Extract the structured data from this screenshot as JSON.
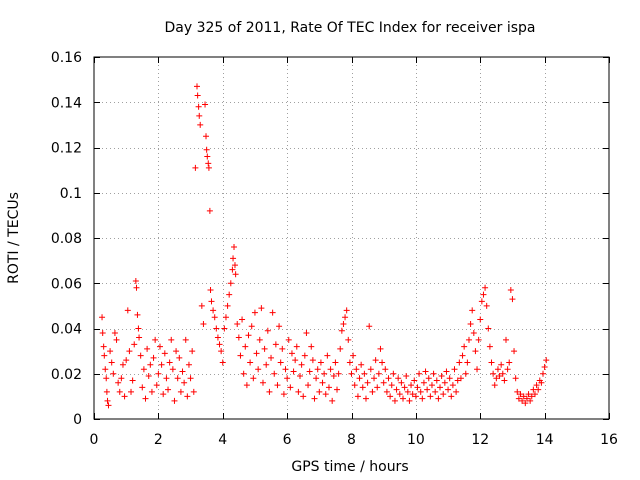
{
  "chart_data": {
    "type": "scatter",
    "title": "Day 325 of 2011, Rate Of TEC Index for receiver ispa",
    "xlabel": "GPS time / hours",
    "ylabel": "ROTI / TECUs",
    "xlim": [
      0,
      16
    ],
    "ylim": [
      0,
      0.16
    ],
    "x_ticks": [
      0,
      2,
      4,
      6,
      8,
      10,
      12,
      14,
      16
    ],
    "x_tick_labels": [
      "0",
      "2",
      "4",
      "6",
      "8",
      "10",
      "12",
      "14",
      "16"
    ],
    "y_ticks": [
      0,
      0.02,
      0.04,
      0.06,
      0.08,
      0.1,
      0.12,
      0.14,
      0.16
    ],
    "y_tick_labels": [
      "0",
      "0.02",
      "0.04",
      "0.06",
      "0.08",
      "0.1",
      "0.12",
      "0.14",
      "0.16"
    ],
    "grid": true,
    "marker": "+",
    "color": "#ff0000",
    "series": [
      {
        "name": "ROTI",
        "points": [
          [
            0.25,
            0.045
          ],
          [
            0.27,
            0.038
          ],
          [
            0.3,
            0.032
          ],
          [
            0.32,
            0.028
          ],
          [
            0.35,
            0.022
          ],
          [
            0.38,
            0.018
          ],
          [
            0.4,
            0.012
          ],
          [
            0.42,
            0.008
          ],
          [
            0.45,
            0.006
          ],
          [
            0.5,
            0.03
          ],
          [
            0.55,
            0.025
          ],
          [
            0.6,
            0.02
          ],
          [
            0.65,
            0.038
          ],
          [
            0.7,
            0.035
          ],
          [
            0.75,
            0.016
          ],
          [
            0.8,
            0.012
          ],
          [
            0.85,
            0.018
          ],
          [
            0.9,
            0.024
          ],
          [
            0.95,
            0.01
          ],
          [
            1.0,
            0.026
          ],
          [
            1.05,
            0.048
          ],
          [
            1.1,
            0.03
          ],
          [
            1.15,
            0.012
          ],
          [
            1.2,
            0.017
          ],
          [
            1.25,
            0.033
          ],
          [
            1.3,
            0.061
          ],
          [
            1.32,
            0.058
          ],
          [
            1.35,
            0.046
          ],
          [
            1.38,
            0.04
          ],
          [
            1.4,
            0.036
          ],
          [
            1.45,
            0.028
          ],
          [
            1.5,
            0.014
          ],
          [
            1.55,
            0.022
          ],
          [
            1.6,
            0.009
          ],
          [
            1.65,
            0.031
          ],
          [
            1.7,
            0.019
          ],
          [
            1.75,
            0.024
          ],
          [
            1.8,
            0.012
          ],
          [
            1.85,
            0.027
          ],
          [
            1.9,
            0.035
          ],
          [
            1.95,
            0.015
          ],
          [
            2.0,
            0.02
          ],
          [
            2.05,
            0.032
          ],
          [
            2.1,
            0.024
          ],
          [
            2.15,
            0.011
          ],
          [
            2.2,
            0.029
          ],
          [
            2.25,
            0.018
          ],
          [
            2.3,
            0.013
          ],
          [
            2.35,
            0.025
          ],
          [
            2.4,
            0.035
          ],
          [
            2.45,
            0.022
          ],
          [
            2.5,
            0.008
          ],
          [
            2.55,
            0.03
          ],
          [
            2.6,
            0.018
          ],
          [
            2.65,
            0.027
          ],
          [
            2.7,
            0.012
          ],
          [
            2.75,
            0.021
          ],
          [
            2.8,
            0.016
          ],
          [
            2.85,
            0.035
          ],
          [
            2.9,
            0.01
          ],
          [
            2.95,
            0.024
          ],
          [
            3.0,
            0.018
          ],
          [
            3.05,
            0.03
          ],
          [
            3.1,
            0.012
          ],
          [
            3.15,
            0.111
          ],
          [
            3.2,
            0.147
          ],
          [
            3.22,
            0.143
          ],
          [
            3.25,
            0.138
          ],
          [
            3.27,
            0.134
          ],
          [
            3.3,
            0.13
          ],
          [
            3.35,
            0.05
          ],
          [
            3.4,
            0.042
          ],
          [
            3.45,
            0.139
          ],
          [
            3.48,
            0.125
          ],
          [
            3.5,
            0.119
          ],
          [
            3.52,
            0.116
          ],
          [
            3.55,
            0.113
          ],
          [
            3.57,
            0.111
          ],
          [
            3.6,
            0.092
          ],
          [
            3.62,
            0.057
          ],
          [
            3.65,
            0.052
          ],
          [
            3.7,
            0.048
          ],
          [
            3.75,
            0.045
          ],
          [
            3.8,
            0.04
          ],
          [
            3.85,
            0.036
          ],
          [
            3.9,
            0.033
          ],
          [
            3.95,
            0.03
          ],
          [
            4.0,
            0.025
          ],
          [
            4.05,
            0.04
          ],
          [
            4.1,
            0.045
          ],
          [
            4.15,
            0.05
          ],
          [
            4.2,
            0.055
          ],
          [
            4.25,
            0.06
          ],
          [
            4.3,
            0.066
          ],
          [
            4.32,
            0.071
          ],
          [
            4.35,
            0.076
          ],
          [
            4.38,
            0.068
          ],
          [
            4.4,
            0.064
          ],
          [
            4.45,
            0.042
          ],
          [
            4.5,
            0.036
          ],
          [
            4.55,
            0.028
          ],
          [
            4.6,
            0.044
          ],
          [
            4.65,
            0.02
          ],
          [
            4.7,
            0.032
          ],
          [
            4.75,
            0.015
          ],
          [
            4.8,
            0.037
          ],
          [
            4.85,
            0.025
          ],
          [
            4.9,
            0.041
          ],
          [
            4.95,
            0.018
          ],
          [
            5.0,
            0.047
          ],
          [
            5.05,
            0.029
          ],
          [
            5.1,
            0.022
          ],
          [
            5.15,
            0.035
          ],
          [
            5.2,
            0.049
          ],
          [
            5.25,
            0.016
          ],
          [
            5.3,
            0.031
          ],
          [
            5.35,
            0.024
          ],
          [
            5.4,
            0.039
          ],
          [
            5.45,
            0.012
          ],
          [
            5.5,
            0.027
          ],
          [
            5.55,
            0.047
          ],
          [
            5.6,
            0.02
          ],
          [
            5.65,
            0.033
          ],
          [
            5.7,
            0.015
          ],
          [
            5.75,
            0.041
          ],
          [
            5.8,
            0.025
          ],
          [
            5.85,
            0.031
          ],
          [
            5.9,
            0.011
          ],
          [
            5.95,
            0.022
          ],
          [
            6.0,
            0.018
          ],
          [
            6.05,
            0.035
          ],
          [
            6.1,
            0.014
          ],
          [
            6.15,
            0.029
          ],
          [
            6.2,
            0.021
          ],
          [
            6.25,
            0.026
          ],
          [
            6.3,
            0.032
          ],
          [
            6.35,
            0.012
          ],
          [
            6.4,
            0.019
          ],
          [
            6.45,
            0.024
          ],
          [
            6.5,
            0.01
          ],
          [
            6.55,
            0.028
          ],
          [
            6.6,
            0.038
          ],
          [
            6.65,
            0.015
          ],
          [
            6.7,
            0.021
          ],
          [
            6.75,
            0.032
          ],
          [
            6.8,
            0.026
          ],
          [
            6.85,
            0.009
          ],
          [
            6.9,
            0.018
          ],
          [
            6.95,
            0.022
          ],
          [
            7.0,
            0.012
          ],
          [
            7.05,
            0.025
          ],
          [
            7.1,
            0.016
          ],
          [
            7.15,
            0.02
          ],
          [
            7.2,
            0.011
          ],
          [
            7.25,
            0.028
          ],
          [
            7.3,
            0.014
          ],
          [
            7.35,
            0.022
          ],
          [
            7.4,
            0.008
          ],
          [
            7.45,
            0.019
          ],
          [
            7.5,
            0.025
          ],
          [
            7.55,
            0.013
          ],
          [
            7.6,
            0.02
          ],
          [
            7.65,
            0.031
          ],
          [
            7.7,
            0.039
          ],
          [
            7.75,
            0.042
          ],
          [
            7.8,
            0.045
          ],
          [
            7.85,
            0.048
          ],
          [
            7.9,
            0.035
          ],
          [
            7.95,
            0.025
          ],
          [
            8.0,
            0.02
          ],
          [
            8.05,
            0.028
          ],
          [
            8.1,
            0.015
          ],
          [
            8.15,
            0.022
          ],
          [
            8.2,
            0.01
          ],
          [
            8.25,
            0.018
          ],
          [
            8.3,
            0.024
          ],
          [
            8.35,
            0.014
          ],
          [
            8.4,
            0.02
          ],
          [
            8.45,
            0.009
          ],
          [
            8.5,
            0.016
          ],
          [
            8.55,
            0.041
          ],
          [
            8.6,
            0.022
          ],
          [
            8.65,
            0.012
          ],
          [
            8.7,
            0.018
          ],
          [
            8.75,
            0.026
          ],
          [
            8.8,
            0.014
          ],
          [
            8.85,
            0.02
          ],
          [
            8.9,
            0.031
          ],
          [
            8.95,
            0.025
          ],
          [
            9.0,
            0.016
          ],
          [
            9.05,
            0.022
          ],
          [
            9.1,
            0.012
          ],
          [
            9.15,
            0.018
          ],
          [
            9.2,
            0.01
          ],
          [
            9.25,
            0.015
          ],
          [
            9.3,
            0.02
          ],
          [
            9.35,
            0.008
          ],
          [
            9.4,
            0.013
          ],
          [
            9.45,
            0.018
          ],
          [
            9.5,
            0.011
          ],
          [
            9.55,
            0.016
          ],
          [
            9.6,
            0.009
          ],
          [
            9.65,
            0.014
          ],
          [
            9.7,
            0.019
          ],
          [
            9.75,
            0.012
          ],
          [
            9.8,
            0.008
          ],
          [
            9.85,
            0.015
          ],
          [
            9.9,
            0.011
          ],
          [
            9.95,
            0.017
          ],
          [
            10.0,
            0.01
          ],
          [
            10.05,
            0.014
          ],
          [
            10.1,
            0.02
          ],
          [
            10.15,
            0.012
          ],
          [
            10.2,
            0.009
          ],
          [
            10.25,
            0.016
          ],
          [
            10.3,
            0.021
          ],
          [
            10.35,
            0.013
          ],
          [
            10.4,
            0.018
          ],
          [
            10.45,
            0.01
          ],
          [
            10.5,
            0.015
          ],
          [
            10.55,
            0.02
          ],
          [
            10.6,
            0.012
          ],
          [
            10.65,
            0.017
          ],
          [
            10.7,
            0.009
          ],
          [
            10.75,
            0.014
          ],
          [
            10.8,
            0.019
          ],
          [
            10.85,
            0.011
          ],
          [
            10.9,
            0.016
          ],
          [
            10.95,
            0.021
          ],
          [
            11.0,
            0.013
          ],
          [
            11.05,
            0.018
          ],
          [
            11.1,
            0.01
          ],
          [
            11.15,
            0.015
          ],
          [
            11.2,
            0.022
          ],
          [
            11.25,
            0.012
          ],
          [
            11.3,
            0.017
          ],
          [
            11.35,
            0.025
          ],
          [
            11.4,
            0.018
          ],
          [
            11.45,
            0.028
          ],
          [
            11.5,
            0.032
          ],
          [
            11.55,
            0.02
          ],
          [
            11.6,
            0.025
          ],
          [
            11.65,
            0.035
          ],
          [
            11.7,
            0.042
          ],
          [
            11.75,
            0.048
          ],
          [
            11.8,
            0.038
          ],
          [
            11.85,
            0.03
          ],
          [
            11.9,
            0.022
          ],
          [
            11.95,
            0.035
          ],
          [
            12.0,
            0.044
          ],
          [
            12.05,
            0.052
          ],
          [
            12.1,
            0.055
          ],
          [
            12.15,
            0.058
          ],
          [
            12.2,
            0.05
          ],
          [
            12.25,
            0.04
          ],
          [
            12.3,
            0.032
          ],
          [
            12.35,
            0.025
          ],
          [
            12.4,
            0.02
          ],
          [
            12.45,
            0.015
          ],
          [
            12.5,
            0.018
          ],
          [
            12.55,
            0.022
          ],
          [
            12.6,
            0.019
          ],
          [
            12.65,
            0.024
          ],
          [
            12.7,
            0.02
          ],
          [
            12.75,
            0.017
          ],
          [
            12.8,
            0.035
          ],
          [
            12.85,
            0.022
          ],
          [
            12.9,
            0.025
          ],
          [
            12.95,
            0.057
          ],
          [
            13.0,
            0.053
          ],
          [
            13.05,
            0.03
          ],
          [
            13.1,
            0.018
          ],
          [
            13.15,
            0.012
          ],
          [
            13.2,
            0.009
          ],
          [
            13.25,
            0.011
          ],
          [
            13.3,
            0.008
          ],
          [
            13.35,
            0.01
          ],
          [
            13.4,
            0.007
          ],
          [
            13.45,
            0.009
          ],
          [
            13.5,
            0.011
          ],
          [
            13.55,
            0.008
          ],
          [
            13.6,
            0.01
          ],
          [
            13.65,
            0.013
          ],
          [
            13.7,
            0.011
          ],
          [
            13.75,
            0.015
          ],
          [
            13.8,
            0.013
          ],
          [
            13.85,
            0.017
          ],
          [
            13.9,
            0.016
          ],
          [
            13.95,
            0.02
          ],
          [
            14.0,
            0.023
          ],
          [
            14.05,
            0.026
          ]
        ]
      }
    ]
  }
}
